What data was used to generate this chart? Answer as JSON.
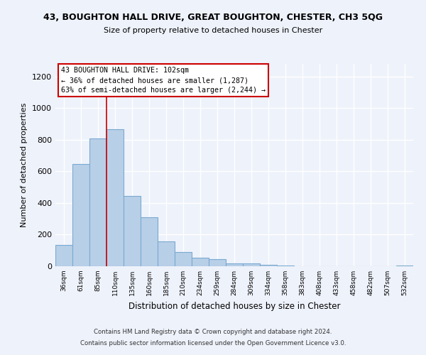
{
  "title": "43, BOUGHTON HALL DRIVE, GREAT BOUGHTON, CHESTER, CH3 5QG",
  "subtitle": "Size of property relative to detached houses in Chester",
  "xlabel": "Distribution of detached houses by size in Chester",
  "ylabel": "Number of detached properties",
  "bar_color": "#b8cfe8",
  "bar_edge_color": "#7aaad0",
  "categories": [
    "36sqm",
    "61sqm",
    "85sqm",
    "110sqm",
    "135sqm",
    "160sqm",
    "185sqm",
    "210sqm",
    "234sqm",
    "259sqm",
    "284sqm",
    "309sqm",
    "334sqm",
    "358sqm",
    "383sqm",
    "408sqm",
    "433sqm",
    "458sqm",
    "482sqm",
    "507sqm",
    "532sqm"
  ],
  "values": [
    135,
    645,
    810,
    865,
    445,
    310,
    158,
    92,
    55,
    47,
    18,
    20,
    10,
    5,
    0,
    0,
    0,
    0,
    0,
    0,
    5
  ],
  "ylim": [
    0,
    1280
  ],
  "yticks": [
    0,
    200,
    400,
    600,
    800,
    1000,
    1200
  ],
  "vline_x": 3.0,
  "vline_color": "#cc0000",
  "annotation_line1": "43 BOUGHTON HALL DRIVE: 102sqm",
  "annotation_line2": "← 36% of detached houses are smaller (1,287)",
  "annotation_line3": "63% of semi-detached houses are larger (2,244) →",
  "footer_line1": "Contains HM Land Registry data © Crown copyright and database right 2024.",
  "footer_line2": "Contains public sector information licensed under the Open Government Licence v3.0.",
  "background_color": "#eef2fb",
  "grid_color": "#ffffff"
}
